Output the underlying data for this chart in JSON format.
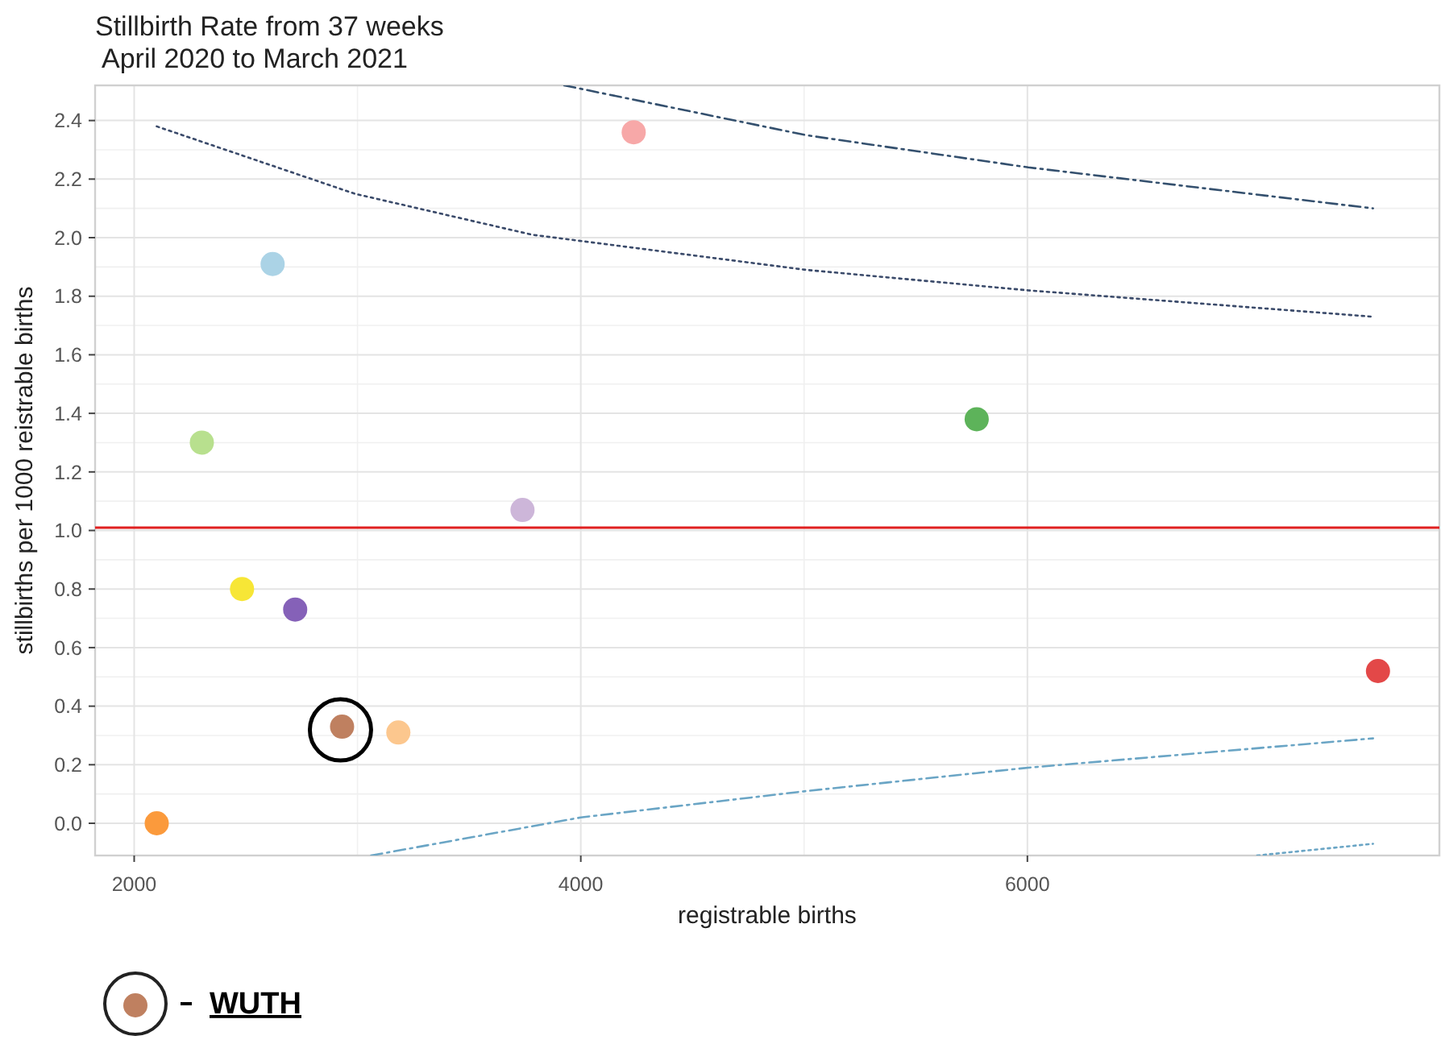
{
  "chart_data": {
    "type": "scatter",
    "title": "Stillbirth Rate from 37 weeks",
    "subtitle": "April 2020 to March 2021",
    "xlabel": "registrable births",
    "ylabel": "stillbirths per 1000 reistrable births",
    "xlim": [
      1825,
      7845
    ],
    "ylim": [
      -0.11,
      2.52
    ],
    "xticks": [
      2000,
      4000,
      6000
    ],
    "yticks": [
      {
        "value": 0,
        "label": "0.0"
      },
      0.2,
      0.4,
      0.6,
      0.8,
      {
        "value": 1,
        "label": "1.0"
      },
      1.2,
      1.4,
      1.6,
      1.8,
      {
        "value": 2,
        "label": "2.0"
      },
      2.2,
      2.4
    ],
    "grid": true,
    "legend": "bottom left",
    "series": [
      {
        "marker": "circle",
        "x": [
          2101,
          2303,
          2620,
          2483,
          2721,
          3183,
          3739,
          4237,
          5773,
          7570
        ],
        "values": [
          0.0,
          1.3,
          1.91,
          0.8,
          0.73,
          0.31,
          1.07,
          2.36,
          1.38,
          0.52
        ],
        "colors": [
          "#fb9a3c",
          "#b8e08e",
          "#abd3e6",
          "#f7e636",
          "#8561b8",
          "#fcc78e",
          "#cdb6d9",
          "#f7a8a8",
          "#5db35a",
          "#e34848"
        ]
      },
      {
        "marker": "circle",
        "name": "WUTH",
        "color": "#bf8060",
        "x": [
          2931
        ],
        "values": [
          0.33
        ]
      },
      {
        "type": "line",
        "line_style": "dashed",
        "color": "#34506e",
        "x": [
          3926,
          5009,
          6004,
          7548
        ],
        "values": [
          2.52,
          2.35,
          2.24,
          2.1
        ]
      },
      {
        "type": "line",
        "line_style": "dotted",
        "color": "#3a4a6a",
        "x": [
          2101,
          2988,
          3782,
          5009,
          6004,
          7548
        ],
        "values": [
          2.38,
          2.15,
          2.01,
          1.89,
          1.82,
          1.73
        ]
      },
      {
        "type": "line",
        "line_style": "dashed",
        "color": "#6aa5c5",
        "x": [
          3061,
          4000,
          5009,
          6004,
          7548
        ],
        "values": [
          -0.11,
          0.02,
          0.11,
          0.19,
          0.29
        ]
      },
      {
        "type": "line",
        "line_style": "dotted",
        "color": "#6aa5c5",
        "x": [
          7029,
          7548
        ],
        "values": [
          -0.11,
          -0.07
        ]
      }
    ],
    "ref_lines": [
      {
        "axis": "y",
        "value": 1.01,
        "color": "#e02020"
      }
    ]
  }
}
